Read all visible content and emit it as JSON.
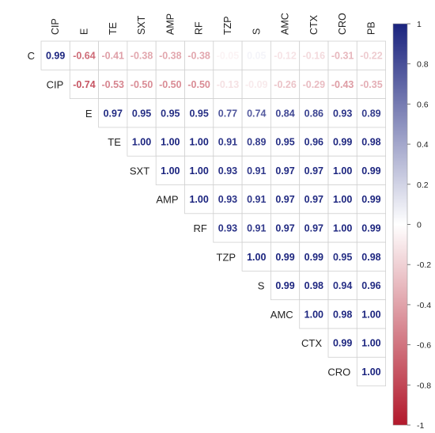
{
  "chart_data": {
    "type": "heatmap",
    "variables": [
      "C",
      "CIP",
      "E",
      "TE",
      "SXT",
      "AMP",
      "RF",
      "TZP",
      "S",
      "AMC",
      "CTX",
      "CRO",
      "PB"
    ],
    "column_labels": [
      "CIP",
      "E",
      "TE",
      "SXT",
      "AMP",
      "RF",
      "TZP",
      "S",
      "AMC",
      "CTX",
      "CRO",
      "PB"
    ],
    "row_labels": [
      "C",
      "CIP",
      "E",
      "TE",
      "SXT",
      "AMP",
      "RF",
      "TZP",
      "S",
      "AMC",
      "CTX",
      "CRO"
    ],
    "matrix": [
      [
        0.99,
        -0.64,
        -0.41,
        -0.38,
        -0.38,
        -0.38,
        -0.05,
        0.05,
        -0.12,
        -0.16,
        -0.31,
        -0.22
      ],
      [
        -0.74,
        -0.53,
        -0.5,
        -0.5,
        -0.5,
        -0.13,
        -0.09,
        -0.26,
        -0.29,
        -0.43,
        -0.35
      ],
      [
        0.97,
        0.95,
        0.95,
        0.95,
        0.77,
        0.74,
        0.84,
        0.86,
        0.93,
        0.89
      ],
      [
        1.0,
        1.0,
        1.0,
        0.91,
        0.89,
        0.95,
        0.96,
        0.99,
        0.98
      ],
      [
        1.0,
        1.0,
        0.93,
        0.91,
        0.97,
        0.97,
        1.0,
        0.99
      ],
      [
        1.0,
        0.93,
        0.91,
        0.97,
        0.97,
        1.0,
        0.99
      ],
      [
        0.93,
        0.91,
        0.97,
        0.97,
        1.0,
        0.99
      ],
      [
        1.0,
        0.99,
        0.99,
        0.95,
        0.98
      ],
      [
        0.99,
        0.98,
        0.94,
        0.96
      ],
      [
        1.0,
        0.98,
        1.0
      ],
      [
        0.99,
        1.0
      ],
      [
        1.0
      ]
    ],
    "colorbar": {
      "min": -1,
      "max": 1,
      "ticks": [
        "1",
        "0.8",
        "0.6",
        "0.4",
        "0.2",
        "0",
        "-0.2",
        "-0.4",
        "-0.6",
        "-0.8",
        "-1"
      ]
    },
    "colors": {
      "positive": "#1a237e",
      "neutral": "#ffffff",
      "negative": "#b2182b"
    }
  }
}
